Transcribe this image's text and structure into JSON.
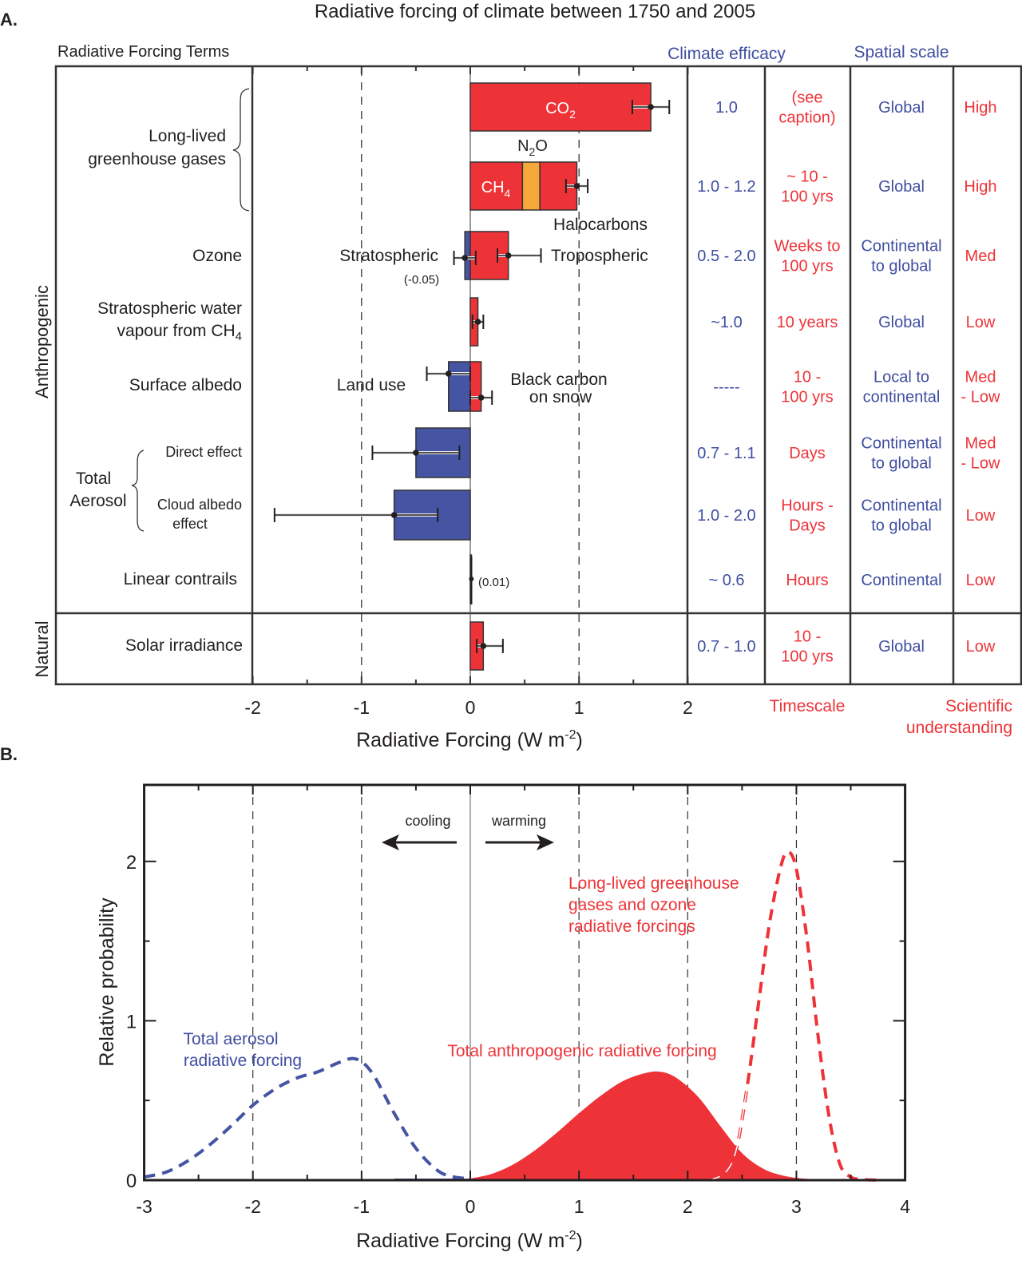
{
  "colors": {
    "positive": "#ee3338",
    "negative": "#4554a3",
    "n2o": "#f7a83a",
    "text_blue": "#3f4ea0",
    "text_red": "#ee3338",
    "axis": "#231f20"
  },
  "panel_a": {
    "panel_label": "A.",
    "title": "Radiative forcing of climate between 1750 and 2005",
    "terms_header": "Radiative Forcing Terms",
    "efficacy_header": "Climate efficacy",
    "spatial_header": "Spatial scale",
    "timescale_header": "Timescale",
    "understanding_header_line1": "Scientific",
    "understanding_header_line2": "understanding",
    "group_anthropogenic": "Anthropogenic",
    "group_natural": "Natural",
    "lived_ghg_line1": "Long-lived",
    "lived_ghg_line2": "greenhouse gases",
    "total_aerosol_line1": "Total",
    "total_aerosol_line2": "Aerosol",
    "rows": [
      {
        "label_lines": [
          "Ozone"
        ],
        "efficacy": "0.5 - 2.0",
        "timescale": [
          "Weeks to",
          "100 yrs"
        ],
        "spatial": [
          "Continental",
          "to global"
        ],
        "understanding": [
          "Med"
        ]
      },
      {
        "label_lines": [
          "Stratospheric water",
          "vapour from CH4"
        ],
        "efficacy": "~1.0",
        "timescale": [
          "10 years"
        ],
        "spatial": [
          "Global"
        ],
        "understanding": [
          "Low"
        ]
      },
      {
        "label_lines": [
          "Surface albedo"
        ],
        "efficacy": "-----",
        "timescale": [
          "10 -",
          "100 yrs"
        ],
        "spatial": [
          "Local to",
          "continental"
        ],
        "understanding": [
          "Med",
          "- Low"
        ]
      },
      {
        "label_lines": [
          "Direct effect"
        ],
        "efficacy": "0.7 - 1.1",
        "timescale": [
          "Days"
        ],
        "spatial": [
          "Continental",
          "to global"
        ],
        "understanding": [
          "Med",
          "- Low"
        ]
      },
      {
        "label_lines": [
          "Cloud albedo",
          "effect"
        ],
        "efficacy": "1.0 - 2.0",
        "timescale": [
          "Hours -",
          "Days"
        ],
        "spatial": [
          "Continental",
          "to global"
        ],
        "understanding": [
          "Low"
        ]
      },
      {
        "label_lines": [
          "Linear  contrails"
        ],
        "efficacy": "~ 0.6",
        "timescale": [
          "Hours"
        ],
        "spatial": [
          "Continental"
        ],
        "understanding": [
          "Low"
        ]
      },
      {
        "label_lines": [
          "Solar irradiance"
        ],
        "efficacy": "0.7 - 1.0",
        "timescale": [
          "10 -",
          "100 yrs"
        ],
        "spatial": [
          "Global"
        ],
        "understanding": [
          "Low"
        ]
      }
    ],
    "ghg_rows": [
      {
        "efficacy": "1.0",
        "timescale": [
          "(see",
          "caption)"
        ],
        "spatial": [
          "Global"
        ],
        "understanding": [
          "High"
        ]
      },
      {
        "efficacy": "1.0 - 1.2",
        "timescale": [
          "~ 10 -",
          "100 yrs"
        ],
        "spatial": [
          "Global"
        ],
        "understanding": [
          "High"
        ]
      }
    ],
    "annotations": {
      "co2": "CO2",
      "ch4": "CH4",
      "n2o": "N2O",
      "halocarbons": "Halocarbons",
      "stratospheric": "Stratospheric",
      "stratospheric_value": "(-0.05)",
      "tropospheric": "Tropospheric",
      "land_use": "Land use",
      "black_carbon_line1": "Black carbon",
      "black_carbon_line2": "on snow",
      "contrails_value": "(0.01)"
    },
    "xlabel": "Radiative Forcing  (W m-2)",
    "xlabel_main": "Radiative Forcing  (W m",
    "xlabel_sup": "-2",
    "xlabel_end": ")"
  },
  "chart_data": [
    {
      "type": "bar",
      "title": "Radiative forcing of climate between 1750 and 2005",
      "xlabel": "Radiative Forcing (W m-2)",
      "ylabel": "Radiative Forcing Terms",
      "xlim": [
        -2,
        2
      ],
      "xticks": [
        -2,
        -1,
        0,
        1,
        2
      ],
      "grid": "dashed vertical at -1 and 1",
      "bars": [
        {
          "term": "CO2",
          "segments": [
            {
              "name": "CO2",
              "from": 0,
              "to": 1.66,
              "color": "positive"
            }
          ],
          "value": 1.66,
          "err_low": 1.49,
          "err_high": 1.83
        },
        {
          "term": "CH4 / N2O / Halocarbons",
          "segments": [
            {
              "name": "CH4",
              "from": 0,
              "to": 0.48,
              "color": "positive"
            },
            {
              "name": "N2O",
              "from": 0.48,
              "to": 0.64,
              "color": "n2o"
            },
            {
              "name": "Halocarbons",
              "from": 0.64,
              "to": 0.98,
              "color": "positive"
            }
          ],
          "value": 0.98,
          "err_low": 0.88,
          "err_high": 1.08
        },
        {
          "term": "Ozone (Stratospheric)",
          "segments": [
            {
              "name": "Stratospheric",
              "from": -0.05,
              "to": 0,
              "color": "negative"
            }
          ],
          "value": -0.05,
          "err_low": -0.15,
          "err_high": 0.05
        },
        {
          "term": "Ozone (Tropospheric)",
          "segments": [
            {
              "name": "Tropospheric",
              "from": 0,
              "to": 0.35,
              "color": "positive"
            }
          ],
          "value": 0.35,
          "err_low": 0.25,
          "err_high": 0.65
        },
        {
          "term": "Stratospheric water vapour from CH4",
          "segments": [
            {
              "name": "H2O",
              "from": 0,
              "to": 0.07,
              "color": "positive"
            }
          ],
          "value": 0.07,
          "err_low": 0.02,
          "err_high": 0.12
        },
        {
          "term": "Surface albedo (Land use)",
          "segments": [
            {
              "name": "Land use",
              "from": -0.2,
              "to": 0,
              "color": "negative"
            }
          ],
          "value": -0.2,
          "err_low": -0.4,
          "err_high": 0.0
        },
        {
          "term": "Surface albedo (Black carbon on snow)",
          "segments": [
            {
              "name": "Black carbon on snow",
              "from": 0,
              "to": 0.1,
              "color": "positive"
            }
          ],
          "value": 0.1,
          "err_low": 0.0,
          "err_high": 0.2
        },
        {
          "term": "Total Aerosol Direct effect",
          "segments": [
            {
              "name": "Direct effect",
              "from": -0.5,
              "to": 0,
              "color": "negative"
            }
          ],
          "value": -0.5,
          "err_low": -0.9,
          "err_high": -0.1
        },
        {
          "term": "Total Aerosol Cloud albedo effect",
          "segments": [
            {
              "name": "Cloud albedo",
              "from": -0.7,
              "to": 0,
              "color": "negative"
            }
          ],
          "value": -0.7,
          "err_low": -1.8,
          "err_high": -0.3
        },
        {
          "term": "Linear contrails",
          "segments": [
            {
              "name": "Contrails",
              "from": 0,
              "to": 0.01,
              "color": "positive"
            }
          ],
          "value": 0.01,
          "err_low": 0.003,
          "err_high": 0.03
        },
        {
          "term": "Solar irradiance",
          "segments": [
            {
              "name": "Solar",
              "from": 0,
              "to": 0.12,
              "color": "positive"
            }
          ],
          "value": 0.12,
          "err_low": 0.06,
          "err_high": 0.3
        }
      ]
    },
    {
      "type": "line",
      "panel_label": "B.",
      "xlabel": "Radiative Forcing (W m-2)",
      "xlabel_main": "Radiative Forcing  (W m",
      "xlabel_sup": "-2",
      "xlabel_end": ")",
      "ylabel": "Relative probability",
      "xlim": [
        -3,
        4
      ],
      "ylim": [
        0,
        2.48
      ],
      "xticks": [
        -3,
        -2,
        -1,
        0,
        1,
        2,
        3,
        4
      ],
      "yticks": [
        0,
        1,
        2
      ],
      "grid": "dashed vertical at -2, -1, 1, 2, 3; solid at 0",
      "arrow_labels": {
        "cooling": "cooling",
        "warming": "warming"
      },
      "series": [
        {
          "name": "Total aerosol radiative forcing",
          "label_lines": [
            "Total aerosol",
            "radiative forcing"
          ],
          "style": "dashed",
          "color": "negative",
          "x": [
            -3.0,
            -2.8,
            -2.6,
            -2.4,
            -2.2,
            -2.0,
            -1.8,
            -1.6,
            -1.4,
            -1.2,
            -1.05,
            -0.9,
            -0.7,
            -0.5,
            -0.3,
            -0.15,
            0.0
          ],
          "y": [
            0.02,
            0.05,
            0.12,
            0.22,
            0.34,
            0.47,
            0.57,
            0.64,
            0.68,
            0.74,
            0.76,
            0.67,
            0.42,
            0.2,
            0.06,
            0.02,
            0.01
          ]
        },
        {
          "name": "Total anthropogenic radiative forcing",
          "label_lines": [
            "Total anthropogenic radiative forcing"
          ],
          "style": "filled",
          "color": "positive",
          "x": [
            0.0,
            0.2,
            0.4,
            0.6,
            0.8,
            1.0,
            1.2,
            1.4,
            1.6,
            1.75,
            1.9,
            2.1,
            2.3,
            2.5,
            2.7,
            2.9,
            3.1,
            3.3,
            3.5
          ],
          "y": [
            0.01,
            0.04,
            0.1,
            0.19,
            0.3,
            0.42,
            0.53,
            0.62,
            0.67,
            0.68,
            0.64,
            0.52,
            0.34,
            0.17,
            0.07,
            0.025,
            0.008,
            0.002,
            0.0
          ]
        },
        {
          "name": "Long-lived greenhouse gases and ozone radiative forcings",
          "label_lines": [
            "Long-lived greenhouse",
            "gases and ozone",
            "radiative forcings"
          ],
          "style": "dashed",
          "color": "positive",
          "x": [
            2.2,
            2.35,
            2.45,
            2.55,
            2.65,
            2.75,
            2.85,
            2.92,
            3.0,
            3.1,
            3.2,
            3.3,
            3.4,
            3.5,
            3.6,
            3.75
          ],
          "y": [
            0.0,
            0.05,
            0.2,
            0.6,
            1.1,
            1.6,
            1.95,
            2.06,
            1.95,
            1.5,
            0.9,
            0.4,
            0.1,
            0.02,
            0.005,
            0.0
          ]
        }
      ]
    }
  ]
}
